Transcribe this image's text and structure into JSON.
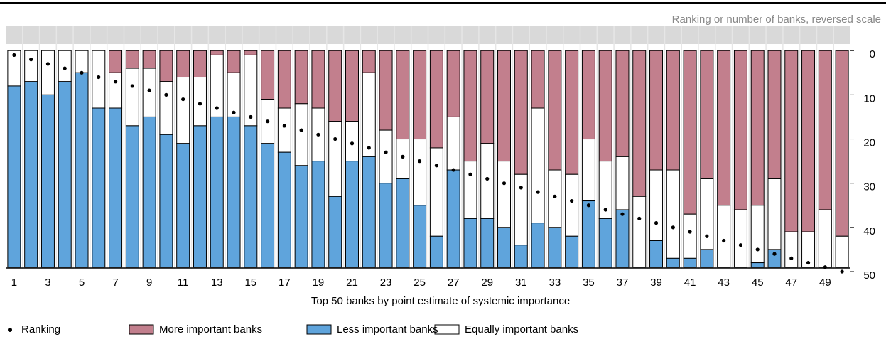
{
  "chart_data": {
    "type": "stacked_bar",
    "y_label": "Ranking or number of banks, reversed scale",
    "x_label": "Top 50 banks by point estimate of systemic importance",
    "categories": [
      "1",
      null,
      "3",
      null,
      "5",
      null,
      "7",
      null,
      "9",
      null,
      "11",
      null,
      "13",
      null,
      "15",
      null,
      "17",
      null,
      "19",
      null,
      "21",
      null,
      "23",
      null,
      "25",
      null,
      "27",
      null,
      "29",
      null,
      "31",
      null,
      "33",
      null,
      "35",
      null,
      "37",
      null,
      "39",
      null,
      "41",
      null,
      "43",
      null,
      "45",
      null,
      "47",
      null,
      "49",
      null
    ],
    "series": [
      {
        "name": "More important banks",
        "color": "#c27f8d",
        "values": [
          0,
          0,
          0,
          0,
          0,
          0,
          5,
          4,
          4,
          7,
          6,
          6,
          1,
          5,
          1,
          11,
          13,
          12,
          13,
          16,
          16,
          5,
          18,
          20,
          20,
          22,
          15,
          25,
          21,
          25,
          28,
          13,
          27,
          28,
          20,
          25,
          24,
          33,
          27,
          27,
          37,
          29,
          35,
          36,
          35,
          29,
          41,
          41,
          36,
          42
        ]
      },
      {
        "name": "Equally important banks",
        "color": "#ffffff",
        "values": [
          8,
          7,
          10,
          7,
          5,
          13,
          8,
          13,
          11,
          12,
          15,
          11,
          14,
          10,
          16,
          10,
          10,
          14,
          12,
          17,
          9,
          19,
          12,
          9,
          15,
          20,
          12,
          13,
          17,
          15,
          16,
          26,
          13,
          14,
          14,
          13,
          12,
          16,
          16,
          20,
          10,
          16,
          14,
          13,
          13,
          16,
          8,
          8,
          13,
          7
        ]
      },
      {
        "name": "Less important banks",
        "color": "#5fa4dc",
        "values": [
          41,
          42,
          39,
          42,
          44,
          36,
          36,
          32,
          34,
          30,
          28,
          32,
          34,
          34,
          32,
          28,
          26,
          23,
          24,
          16,
          24,
          25,
          19,
          20,
          14,
          7,
          22,
          11,
          11,
          9,
          5,
          10,
          9,
          7,
          15,
          11,
          13,
          0,
          6,
          2,
          2,
          4,
          0,
          0,
          1,
          4,
          0,
          0,
          0,
          0
        ]
      }
    ],
    "ranking": {
      "name": "Ranking",
      "color": "#000000",
      "values": [
        1,
        2,
        3,
        4,
        5,
        6,
        7,
        8,
        9,
        10,
        11,
        12,
        13,
        14,
        15,
        16,
        17,
        18,
        19,
        20,
        21,
        22,
        23,
        24,
        25,
        26,
        27,
        28,
        29,
        30,
        31,
        32,
        33,
        34,
        35,
        36,
        37,
        38,
        39,
        40,
        41,
        42,
        43,
        44,
        45,
        46,
        47,
        48,
        49,
        50
      ]
    },
    "ylim": [
      50,
      -1
    ],
    "yticks": [
      0,
      10,
      20,
      30,
      40,
      50
    ]
  }
}
